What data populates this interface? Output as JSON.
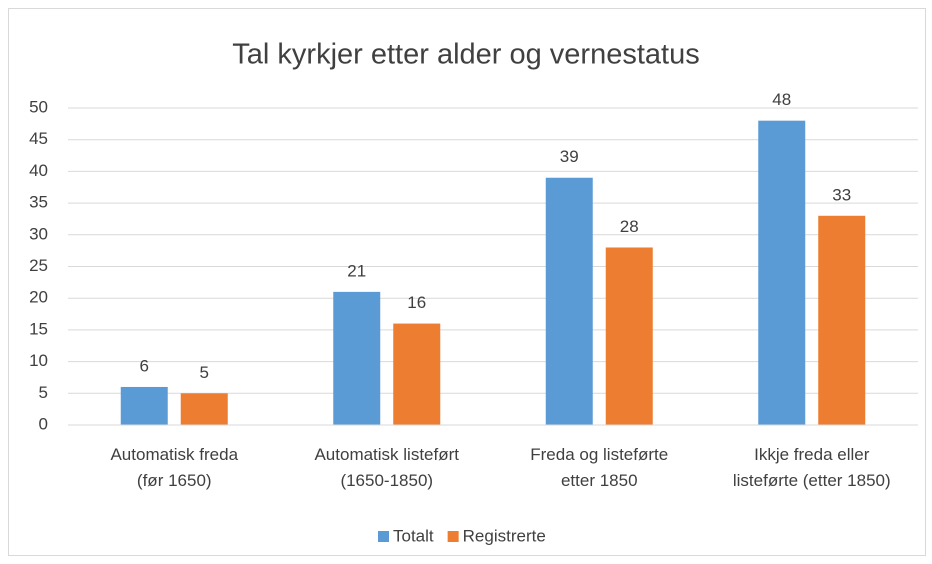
{
  "chart_data": {
    "type": "bar",
    "title": "Tal kyrkjer etter alder og vernestatus",
    "categories": [
      "Automatisk freda\n(før 1650)",
      "Automatisk listeført\n(1650-1850)",
      "Freda og listeførte\netter 1850",
      "Ikkje freda eller\nlisteførte (etter 1850)"
    ],
    "series": [
      {
        "name": "Totalt",
        "color": "#5b9bd5",
        "values": [
          6,
          21,
          39,
          48
        ]
      },
      {
        "name": "Registrerte",
        "color": "#ed7d31",
        "values": [
          5,
          16,
          28,
          33
        ]
      }
    ],
    "ylim": [
      0,
      50
    ],
    "yticks": [
      0,
      5,
      10,
      15,
      20,
      25,
      30,
      35,
      40,
      45,
      50
    ],
    "grid": true,
    "legend": "bottom"
  }
}
